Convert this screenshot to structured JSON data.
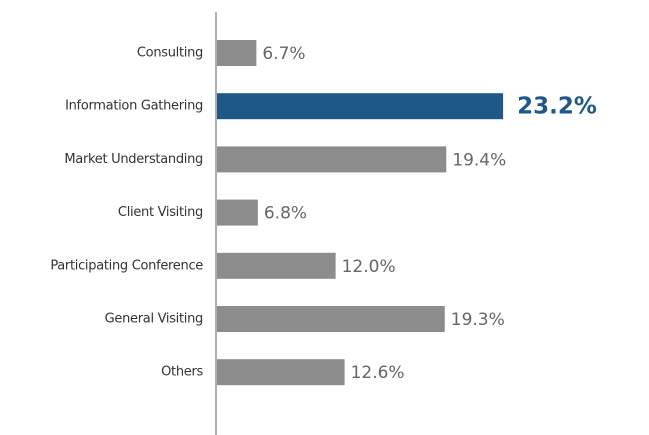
{
  "chart_data": {
    "type": "hbar",
    "categories": [
      "Consulting",
      "Information Gathering",
      "Market Understanding",
      "Client Visiting",
      "Participating Conference",
      "General Visiting",
      "Others"
    ],
    "values": [
      6.7,
      23.2,
      19.4,
      6.8,
      12.0,
      19.3,
      12.6
    ],
    "value_labels": [
      "6.7%",
      "23.2%",
      "19.4%",
      "6.8%",
      "12.0%",
      "19.3%",
      "12.6%"
    ],
    "colors": [
      "#8c8c8c",
      "#1d5889",
      "#8c8c8c",
      "#8c8c8c",
      "#8c8c8c",
      "#8c8c8c",
      "#8c8c8c"
    ],
    "highlight": 1,
    "xlim": [
      4,
      25
    ]
  }
}
